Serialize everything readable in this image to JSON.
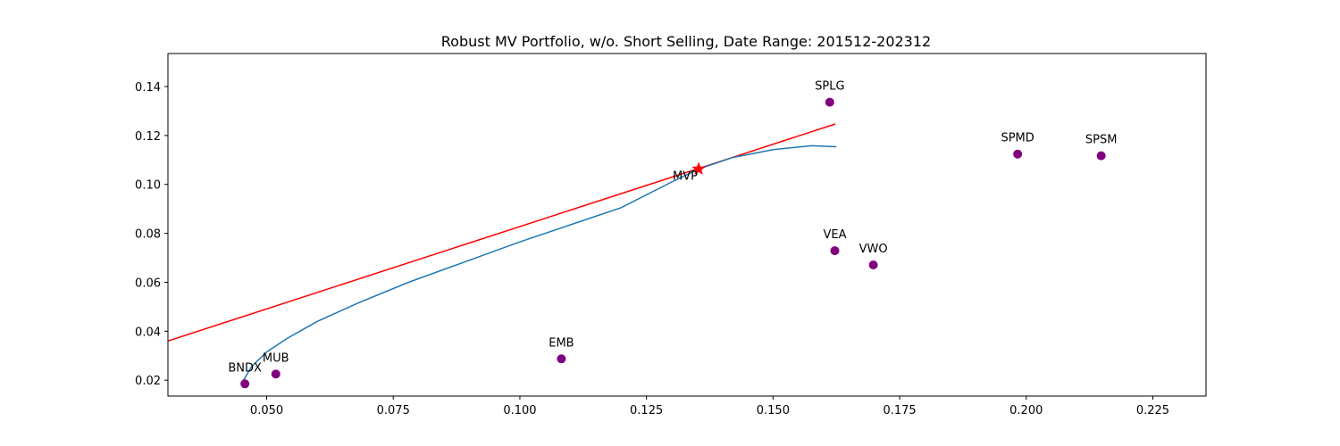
{
  "chart_data": {
    "type": "scatter",
    "title": "Robust MV Portfolio, w/o. Short Selling, Date Range: 201512-202312",
    "xlabel": "",
    "ylabel": "",
    "xlim": [
      0.0305,
      0.2355
    ],
    "ylim": [
      0.0135,
      0.1535
    ],
    "x_ticks": [
      0.05,
      0.075,
      0.1,
      0.125,
      0.15,
      0.175,
      0.2,
      0.225
    ],
    "x_tick_labels": [
      "0.050",
      "0.075",
      "0.100",
      "0.125",
      "0.150",
      "0.175",
      "0.200",
      "0.225"
    ],
    "y_ticks": [
      0.02,
      0.04,
      0.06,
      0.08,
      0.1,
      0.12,
      0.14
    ],
    "y_tick_labels": [
      "0.02",
      "0.04",
      "0.06",
      "0.08",
      "0.10",
      "0.12",
      "0.14"
    ],
    "grid": false,
    "assets": [
      {
        "label": "BNDX",
        "x": 0.0457,
        "y": 0.0185
      },
      {
        "label": "MUB",
        "x": 0.0518,
        "y": 0.0225
      },
      {
        "label": "EMB",
        "x": 0.1082,
        "y": 0.0287
      },
      {
        "label": "SPLG",
        "x": 0.1612,
        "y": 0.1336
      },
      {
        "label": "VEA",
        "x": 0.1622,
        "y": 0.0729
      },
      {
        "label": "VWO",
        "x": 0.1698,
        "y": 0.0671
      },
      {
        "label": "SPMD",
        "x": 0.1983,
        "y": 0.1124
      },
      {
        "label": "SPSM",
        "x": 0.2148,
        "y": 0.1117
      }
    ],
    "asset_color": "#800080",
    "mvp": {
      "label": "MVP",
      "x": 0.1353,
      "y": 0.1063,
      "color": "#ff0000"
    },
    "frontier": {
      "color": "#1f77b4",
      "x": [
        0.0453,
        0.047,
        0.05,
        0.054,
        0.06,
        0.068,
        0.078,
        0.088,
        0.1,
        0.11,
        0.12,
        0.13,
        0.1353,
        0.142,
        0.15,
        0.1576,
        0.1625
      ],
      "y": [
        0.0195,
        0.0255,
        0.0315,
        0.037,
        0.044,
        0.0515,
        0.06,
        0.0675,
        0.0765,
        0.0835,
        0.0905,
        0.101,
        0.1063,
        0.111,
        0.1142,
        0.1158,
        0.1154
      ]
    },
    "tangent_line": {
      "color": "#ff0000",
      "x": [
        0.0305,
        0.1623
      ],
      "y": [
        0.036,
        0.1247
      ]
    }
  }
}
